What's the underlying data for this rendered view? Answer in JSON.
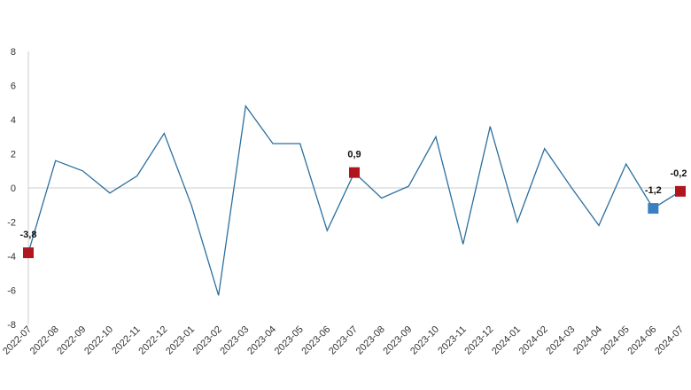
{
  "chart_data": {
    "type": "line",
    "x": [
      "2022-07",
      "2022-08",
      "2022-09",
      "2022-10",
      "2022-11",
      "2022-12",
      "2023-01",
      "2023-02",
      "2023-03",
      "2023-04",
      "2023-05",
      "2023-06",
      "2023-07",
      "2023-08",
      "2023-09",
      "2023-10",
      "2023-11",
      "2023-12",
      "2024-01",
      "2024-02",
      "2024-03",
      "2024-04",
      "2024-05",
      "2024-06",
      "2024-07"
    ],
    "series": [
      {
        "values": [
          -3.8,
          1.6,
          1.0,
          -0.3,
          0.7,
          3.2,
          -1.0,
          -6.3,
          4.8,
          2.6,
          2.6,
          -2.5,
          0.9,
          -0.6,
          0.1,
          3.0,
          -3.3,
          3.6,
          -2.0,
          2.3,
          0.0,
          -2.2,
          1.4,
          -1.2,
          -0.2
        ],
        "color": "#2b6f9e"
      }
    ],
    "yticks": [
      "-8",
      "-6",
      "-4",
      "-2",
      "0",
      "2",
      "4",
      "6",
      "8"
    ],
    "ylim": [
      -8,
      8
    ],
    "highlights": [
      {
        "index": 0,
        "label": "-3,8",
        "color": "#b0161d"
      },
      {
        "index": 12,
        "label": "0,9",
        "color": "#b0161d"
      },
      {
        "index": 23,
        "label": "-1,2",
        "color": "#3a7fc1"
      },
      {
        "index": 24,
        "label": "-0,2",
        "color": "#b0161d"
      }
    ],
    "axis_color": "#cccccc",
    "grid": false,
    "legend": "none"
  }
}
